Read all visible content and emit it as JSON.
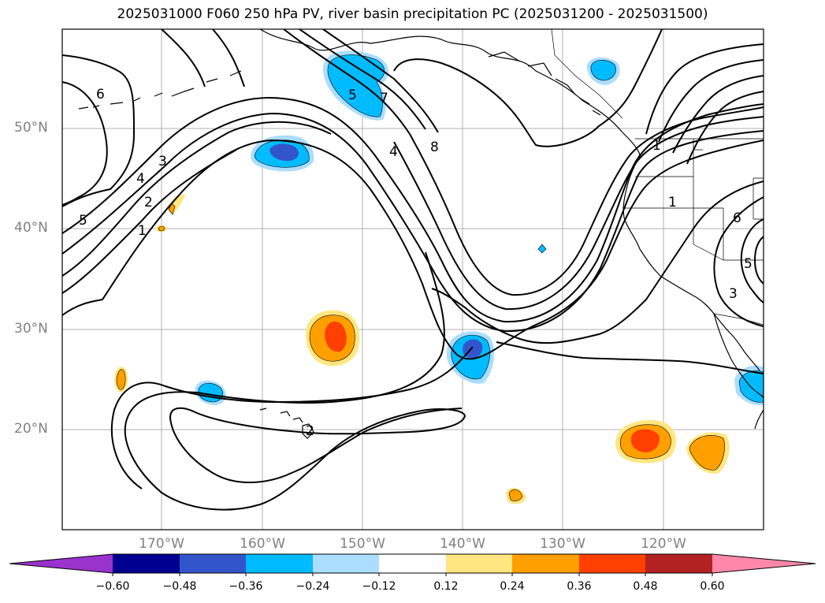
{
  "title": "2025031000 F060 250 hPa PV, river basin precipitation PC (2025031200 - 2025031500)",
  "lat_labels": [
    "50°N",
    "40°N",
    "30°N",
    "20°N"
  ],
  "lon_labels": [
    "170°W",
    "160°W",
    "150°W",
    "140°W",
    "130°W",
    "120°W"
  ],
  "contour_labels": [
    "6",
    "5",
    "4",
    "3",
    "2",
    "1",
    "5",
    "7",
    "4",
    "8",
    "1",
    "1",
    "6",
    "5",
    "3",
    "2"
  ],
  "colorbar": {
    "tick_labels": [
      "−0.60",
      "−0.48",
      "−0.36",
      "−0.24",
      "−0.12",
      "0.12",
      "0.24",
      "0.36",
      "0.48",
      "0.60"
    ],
    "colors": [
      "#9933cc",
      "#000090",
      "#3355cc",
      "#00bbff",
      "#aaddff",
      "#ffffff",
      "#ffe680",
      "#ffa000",
      "#ff4000",
      "#b22222",
      "#ff88aa"
    ]
  },
  "colors": {
    "shade_neg_light": "#aaddff",
    "shade_neg_mid": "#00bbff",
    "shade_neg_strong": "#3355cc",
    "shade_pos_light": "#ffe680",
    "shade_pos_mid": "#ffa000",
    "shade_pos_strong": "#ff4000",
    "grid": "#b0b0b0",
    "contour": "#000000"
  }
}
